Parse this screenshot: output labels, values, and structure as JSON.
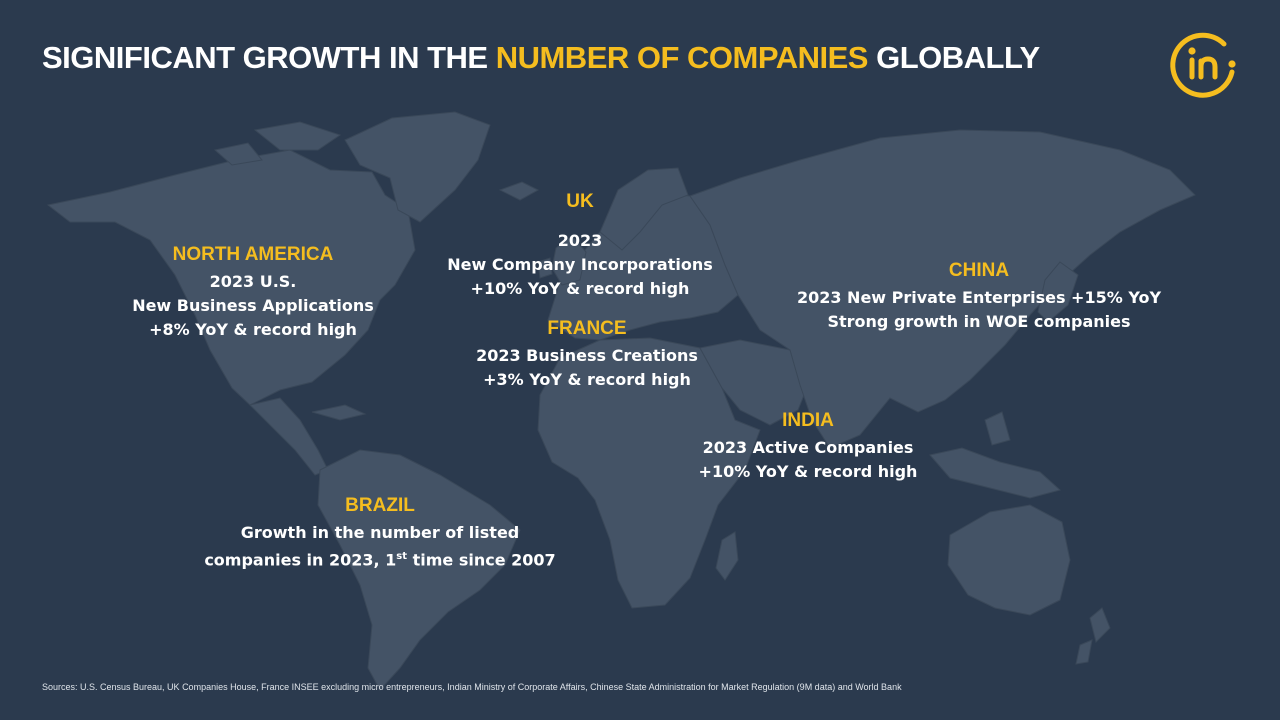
{
  "title": {
    "part1": "SIGNIFICANT GROWTH IN THE ",
    "highlight": "NUMBER OF COMPANIES",
    "part2": " GLOBALLY"
  },
  "logo": {
    "text": "in",
    "color": "#f5bd1f"
  },
  "regions": {
    "north_america": {
      "heading": "NORTH AMERICA",
      "line1": "2023 U.S.",
      "line2": "New Business Applications",
      "line3": "+8% YoY & record high"
    },
    "uk": {
      "heading": "UK",
      "line1": "2023",
      "line2": "New Company Incorporations",
      "line3": "+10% YoY & record high"
    },
    "france": {
      "heading": "FRANCE",
      "line1": "2023 Business Creations",
      "line2": "+3% YoY & record high"
    },
    "china": {
      "heading": "CHINA",
      "line1": "2023 New Private Enterprises +15% YoY",
      "line2": "Strong growth in WOE companies"
    },
    "india": {
      "heading": "INDIA",
      "line1": "2023 Active Companies",
      "line2": "+10% YoY & record high"
    },
    "brazil": {
      "heading": "BRAZIL",
      "line1": "Growth in the number of listed",
      "line2_pre": "companies in 2023, 1",
      "line2_sup": "st",
      "line2_post": " time since 2007"
    }
  },
  "footer": "Sources: U.S. Census Bureau, UK Companies House, France INSEE excluding micro entrepreneurs, Indian Ministry of Corporate Affairs,  Chinese State Administration for Market Regulation (9M data) and World Bank",
  "colors": {
    "background": "#2b3a4e",
    "land": "#445366",
    "accent": "#f5bd1f",
    "text": "#ffffff"
  }
}
